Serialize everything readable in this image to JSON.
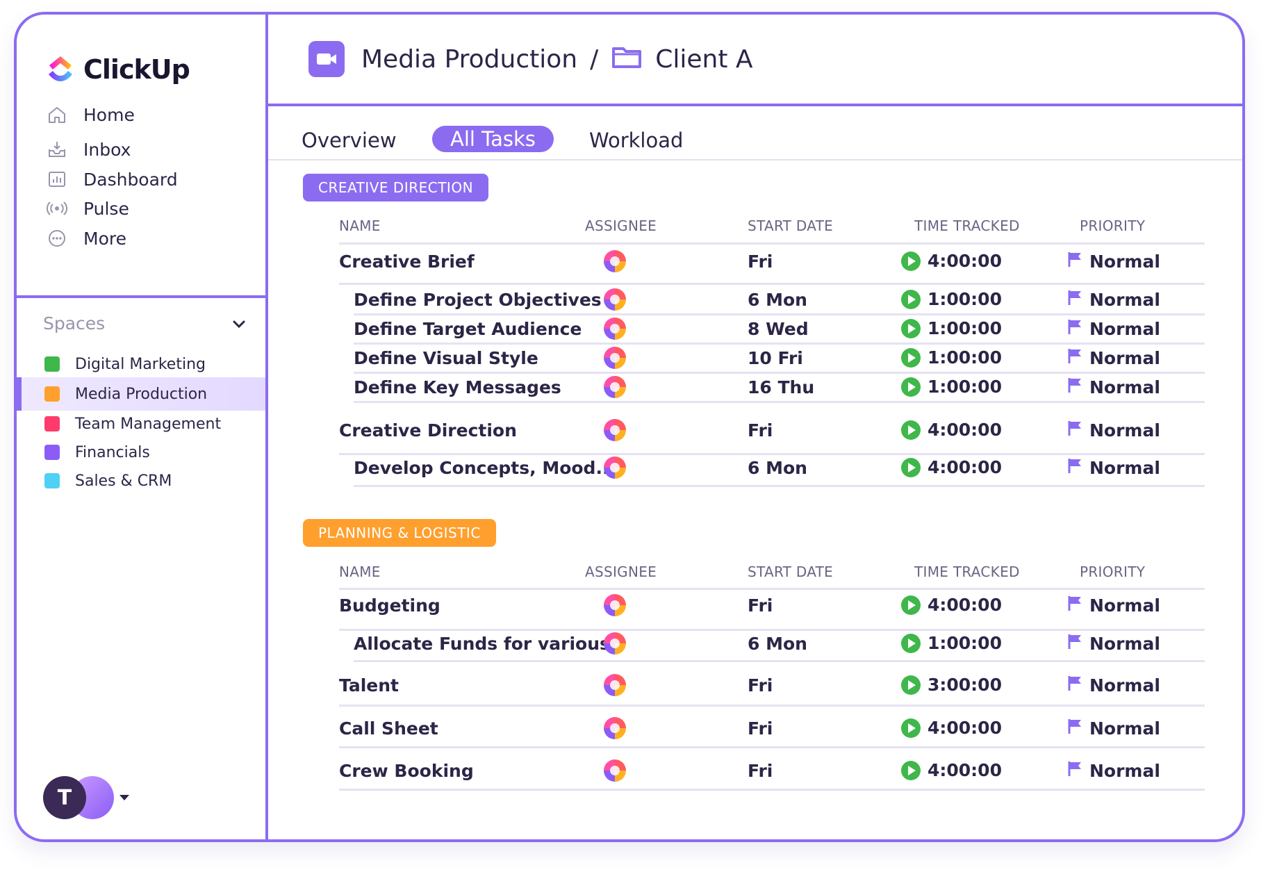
{
  "brand": {
    "name": "ClickUp"
  },
  "nav": [
    {
      "label": "Home",
      "icon": "home-icon"
    },
    {
      "label": "Inbox",
      "icon": "inbox-icon"
    },
    {
      "label": "Dashboard",
      "icon": "dashboard-icon"
    },
    {
      "label": "Pulse",
      "icon": "pulse-icon"
    },
    {
      "label": "More",
      "icon": "more-icon"
    }
  ],
  "spaces": {
    "title": "Spaces",
    "items": [
      {
        "label": "Digital Marketing",
        "color": "#3fb74a"
      },
      {
        "label": "Media Production",
        "color": "#ff9f2e",
        "active": true
      },
      {
        "label": "Team Management",
        "color": "#ff3b6b"
      },
      {
        "label": "Financials",
        "color": "#8b5cf6"
      },
      {
        "label": "Sales & CRM",
        "color": "#4fd1f5"
      }
    ]
  },
  "user": {
    "initial": "T"
  },
  "breadcrumb": {
    "space": "Media Production",
    "separator": "/",
    "folder": "Client A"
  },
  "tabs": [
    "Overview",
    "All Tasks",
    "Workload"
  ],
  "active_tab": "All Tasks",
  "columns": [
    "NAME",
    "ASSIGNEE",
    "START DATE",
    "TIME TRACKED",
    "PRIORITY"
  ],
  "groups": [
    {
      "title": "CREATIVE DIRECTION",
      "color": "#8b6cf0",
      "rows": [
        {
          "name": "Creative Brief",
          "sub": false,
          "date": "Fri",
          "time": "4:00:00",
          "priority": "Normal"
        },
        {
          "name": "Define Project Objectives",
          "sub": true,
          "date": "6 Mon",
          "time": "1:00:00",
          "priority": "Normal"
        },
        {
          "name": "Define Target Audience",
          "sub": true,
          "date": "8 Wed",
          "time": "1:00:00",
          "priority": "Normal"
        },
        {
          "name": "Define Visual Style",
          "sub": true,
          "date": "10 Fri",
          "time": "1:00:00",
          "priority": "Normal"
        },
        {
          "name": "Define Key Messages",
          "sub": true,
          "date": "16 Thu",
          "time": "1:00:00",
          "priority": "Normal"
        },
        {
          "name": "Creative Direction",
          "sub": false,
          "date": "Fri",
          "time": "4:00:00",
          "priority": "Normal"
        },
        {
          "name": "Develop Concepts, Mood...",
          "sub": true,
          "date": "6 Mon",
          "time": "4:00:00",
          "priority": "Normal"
        }
      ]
    },
    {
      "title": "PLANNING & LOGISTIC",
      "color": "#ff9f2e",
      "rows": [
        {
          "name": "Budgeting",
          "sub": false,
          "date": "Fri",
          "time": "4:00:00",
          "priority": "Normal"
        },
        {
          "name": "Allocate Funds for various",
          "sub": true,
          "date": "6 Mon",
          "time": "1:00:00",
          "priority": "Normal"
        },
        {
          "name": "Talent",
          "sub": false,
          "date": "Fri",
          "time": "3:00:00",
          "priority": "Normal"
        },
        {
          "name": "Call Sheet",
          "sub": false,
          "date": "Fri",
          "time": "4:00:00",
          "priority": "Normal"
        },
        {
          "name": "Crew Booking",
          "sub": false,
          "date": "Fri",
          "time": "4:00:00",
          "priority": "Normal"
        }
      ]
    }
  ],
  "colors": {
    "accent": "#8b6cf0",
    "play": "#3fb74a",
    "flag": "#8b6cf0"
  }
}
